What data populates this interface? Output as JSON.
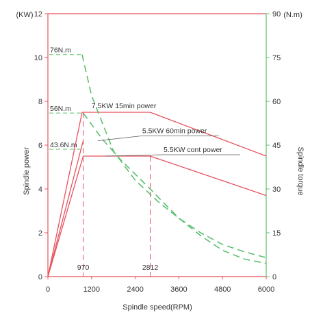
{
  "colors": {
    "power": "#e8505b",
    "torque": "#5bbf6e",
    "guide": "#e8505b",
    "text": "#333333",
    "background": "#ffffff"
  },
  "chart_data": {
    "type": "line",
    "xlabel": "Spindle speed(RPM)",
    "ylabel_left": "Spindle power",
    "ylabel_right": "Spindle torque",
    "unit_left": "(KW)",
    "unit_right": "(N.m)",
    "xlim": [
      0,
      6000
    ],
    "ylim_left": [
      0,
      12
    ],
    "ylim_right": [
      0,
      90
    ],
    "x_ticks": [
      0,
      1200,
      2400,
      3600,
      4800,
      6000
    ],
    "x_tick_labels": [
      "0",
      "1200",
      "2400",
      "3600",
      "4800",
      "6000"
    ],
    "y_left_ticks": [
      0,
      2,
      4,
      6,
      8,
      10,
      12
    ],
    "y_left_tick_labels": [
      "0",
      "2",
      "4",
      "6",
      "8",
      "10",
      "12"
    ],
    "y_right_ticks": [
      0,
      15,
      30,
      45,
      60,
      75,
      90
    ],
    "y_right_tick_labels": [
      "0",
      "15",
      "30",
      "45",
      "60",
      "75",
      "90"
    ],
    "markers": [
      {
        "x": 970,
        "label": "970"
      },
      {
        "x": 2812,
        "label": "2812"
      }
    ],
    "series": [
      {
        "name": "7.5KW 15min power",
        "axis": "left",
        "style": "solid",
        "points": [
          [
            0,
            0
          ],
          [
            940,
            7.5
          ],
          [
            2812,
            7.5
          ],
          [
            6000,
            5.5
          ]
        ]
      },
      {
        "name": "5.5KW 60min power",
        "axis": "left",
        "style": "solid",
        "points": [
          [
            0,
            0
          ],
          [
            970,
            6.2
          ]
        ]
      },
      {
        "name": "5.5KW cont power",
        "axis": "left",
        "style": "solid",
        "points": [
          [
            0,
            0
          ],
          [
            970,
            5.5
          ],
          [
            2812,
            5.5
          ],
          [
            6000,
            3.7
          ]
        ]
      },
      {
        "axis": "right",
        "style": "dashed",
        "points": [
          [
            940,
            76
          ],
          [
            1200,
            62
          ],
          [
            1800,
            43
          ],
          [
            2400,
            33
          ],
          [
            3000,
            26
          ],
          [
            3600,
            20
          ],
          [
            4200,
            15
          ],
          [
            4800,
            11
          ],
          [
            5400,
            8.5
          ],
          [
            6000,
            6.5
          ]
        ]
      },
      {
        "axis": "right",
        "style": "dashed",
        "points": [
          [
            970,
            56
          ],
          [
            1500,
            47
          ],
          [
            2000,
            40
          ],
          [
            2812,
            30
          ],
          [
            3600,
            20
          ],
          [
            4200,
            14
          ],
          [
            4800,
            9
          ],
          [
            5400,
            6
          ],
          [
            6000,
            4.5
          ]
        ]
      }
    ],
    "torque_levels": [
      {
        "label": "76N.m",
        "value": 76
      },
      {
        "label": "56N.m",
        "value": 56
      },
      {
        "label": "43.6N.m",
        "value": 43.6
      }
    ],
    "annotations": [
      {
        "text": "7.5KW 15min power",
        "x": 1200,
        "y": 7.5
      },
      {
        "text": "5.5KW 60min power",
        "x": 1370,
        "y": 6.2
      },
      {
        "text": "5.5KW cont power",
        "x": 1580,
        "y": 5.5
      }
    ]
  }
}
